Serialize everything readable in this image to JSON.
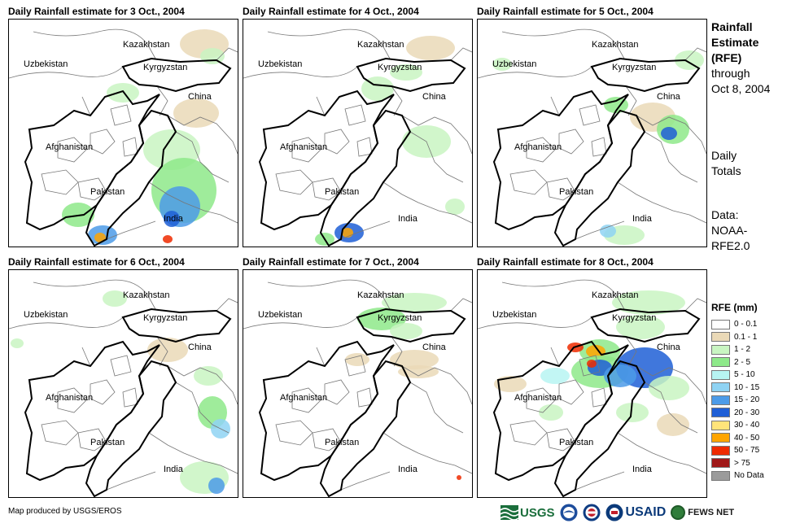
{
  "panels": [
    {
      "title": "Daily Rainfall estimate for 3 Oct., 2004",
      "day": 3
    },
    {
      "title": "Daily Rainfall estimate for 4 Oct., 2004",
      "day": 4
    },
    {
      "title": "Daily Rainfall estimate for 5 Oct., 2004",
      "day": 5
    },
    {
      "title": "Daily Rainfall estimate for 6 Oct., 2004",
      "day": 6
    },
    {
      "title": "Daily Rainfall estimate for 7 Oct., 2004",
      "day": 7
    },
    {
      "title": "Daily Rainfall estimate for 8 Oct., 2004",
      "day": 8
    }
  ],
  "map_labels": {
    "kazakhstan": "Kazakhstan",
    "uzbekistan": "Uzbekistan",
    "kyrgyzstan": "Kyrgyzstan",
    "china": "China",
    "afghanistan": "Afghanistan",
    "pakistan": "Pakistan",
    "india": "India"
  },
  "side": {
    "title_bold_1": "Rainfall",
    "title_bold_2": "Estimate",
    "title_bold_3": "(RFE)",
    "title_line_4": "through",
    "title_line_5": "Oct 8, 2004",
    "daily_1": "Daily",
    "daily_2": "Totals",
    "data_1": "Data:",
    "data_2": "NOAA-",
    "data_3": "RFE2.0"
  },
  "legend": {
    "title": "RFE (mm)",
    "items": [
      {
        "label": "0 - 0.1",
        "color": "#ffffff"
      },
      {
        "label": "0.1 - 1",
        "color": "#ead9b7"
      },
      {
        "label": "1 - 2",
        "color": "#c9f5c2"
      },
      {
        "label": "2 - 5",
        "color": "#8ee98a"
      },
      {
        "label": "5 - 10",
        "color": "#b7f4f2"
      },
      {
        "label": "10 - 15",
        "color": "#8fd3f3"
      },
      {
        "label": "15 - 20",
        "color": "#4c9be8"
      },
      {
        "label": "20 - 30",
        "color": "#1f5fd6"
      },
      {
        "label": "30 - 40",
        "color": "#ffe47a"
      },
      {
        "label": "40 - 50",
        "color": "#ffa500"
      },
      {
        "label": "50 - 75",
        "color": "#ee2a00"
      },
      {
        "label": "> 75",
        "color": "#a01818"
      },
      {
        "label": "No Data",
        "color": "#9b9b9b"
      }
    ]
  },
  "credit": "Map produced by USGS/EROS",
  "logos": {
    "usgs": "USGS",
    "usaid": "USAID",
    "fews": "FEWS NET"
  }
}
